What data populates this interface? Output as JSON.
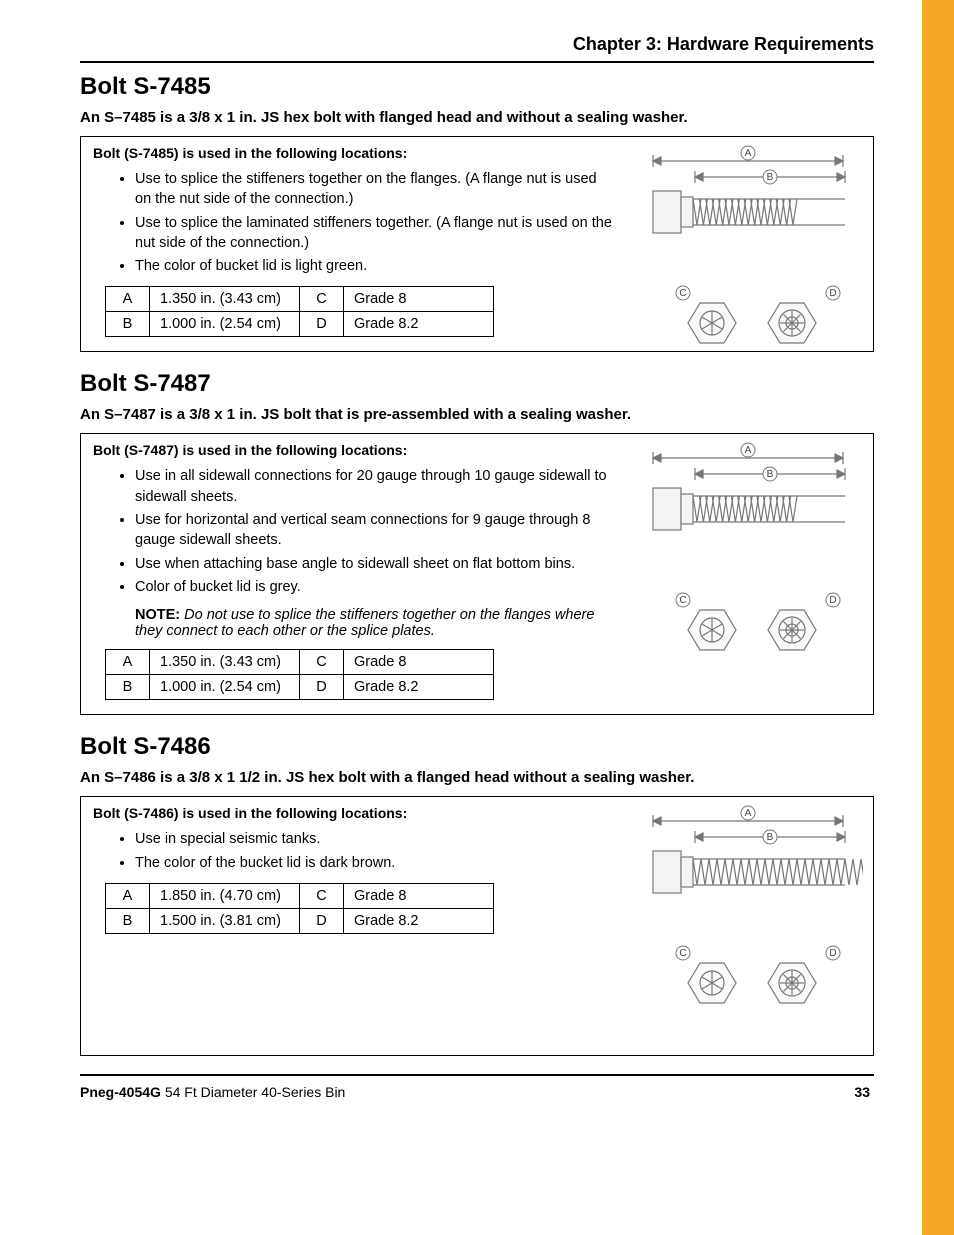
{
  "chapter": "Chapter 3: Hardware Requirements",
  "footer": {
    "doc": "Pneg-4054G",
    "title": " 54 Ft Diameter 40-Series Bin",
    "page": "33"
  },
  "accent_color": "#f5a623",
  "sections": [
    {
      "heading": "Bolt S-7485",
      "desc": "An S–7485 is a 3/8 x 1 in. JS hex bolt with flanged head and without a sealing washer.",
      "box_title": "Bolt (S-7485) is used in the following locations:",
      "bullets": [
        "Use to splice the stiffeners together on the flanges. (A flange nut is used on the nut side of the connection.)",
        "Use to splice the laminated stiffeners together. (A flange nut is used on the nut side of the connection.)",
        "The color of bucket lid is light green."
      ],
      "note": null,
      "rows": [
        [
          "A",
          "1.350 in. (3.43 cm)",
          "C",
          "Grade 8"
        ],
        [
          "B",
          "1.000 in. (2.54 cm)",
          "D",
          "Grade 8.2"
        ]
      ],
      "diagram_h": 230
    },
    {
      "heading": "Bolt S-7487",
      "desc": "An S–7487 is a 3/8 x 1 in. JS bolt that is pre-assembled with a sealing washer.",
      "box_title": "Bolt (S-7487) is used in the following locations:",
      "bullets": [
        "Use in all sidewall connections for 20 gauge through 10 gauge sidewall to sidewall sheets.",
        "Use for horizontal and vertical seam connections for 9 gauge through 8 gauge sidewall sheets.",
        "Use when attaching base angle to sidewall sheet on flat bottom bins.",
        "Color of bucket lid is grey."
      ],
      "note": {
        "label": "NOTE:",
        "text": " Do not use to splice the stiffeners together on the flanges where they connect to each other or the splice plates."
      },
      "rows": [
        [
          "A",
          "1.350 in. (3.43 cm)",
          "C",
          "Grade 8"
        ],
        [
          "B",
          "1.000 in. (2.54 cm)",
          "D",
          "Grade 8.2"
        ]
      ],
      "diagram_h": 240
    },
    {
      "heading": "Bolt S-7486",
      "desc": "An S–7486 is a 3/8 x 1 1/2 in. JS hex bolt with a flanged head without a sealing washer.",
      "box_title": "Bolt (S-7486) is used in the following locations:",
      "bullets": [
        "Use in special seismic tanks.",
        "The color of the bucket lid is dark brown."
      ],
      "note": null,
      "rows": [
        [
          "A",
          "1.850 in. (4.70 cm)",
          "C",
          "Grade 8"
        ],
        [
          "B",
          "1.500 in. (3.81 cm)",
          "D",
          "Grade 8.2"
        ]
      ],
      "diagram_h": 230,
      "box_min": 260,
      "long_bolt": true
    }
  ]
}
